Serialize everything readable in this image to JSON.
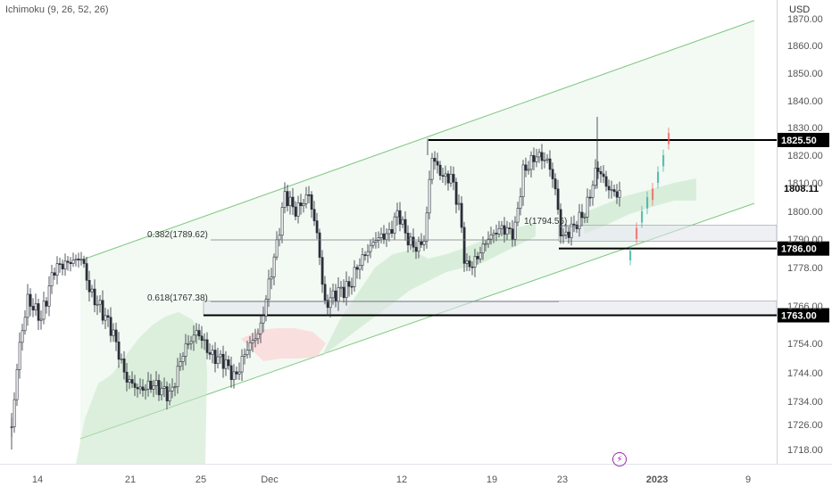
{
  "indicator": "Ichimoku (9, 26, 52, 26)",
  "currency": "USD",
  "flash_icon": "lightning-icon",
  "colors": {
    "bull": "#26a69a",
    "bear": "#ef5350",
    "candle": "#2a2e39",
    "channel": "#81c784",
    "cloud_green": "#a5d6a7",
    "cloud_red": "#ef9a9a",
    "level": "#000000",
    "flash": "#9c27b0"
  },
  "chart_data": {
    "type": "candlestick",
    "y_ticks": [
      "1870.00",
      "1860.00",
      "1850.00",
      "1840.00",
      "1830.00",
      "1820.00",
      "1810.00",
      "1800.00",
      "1790.00",
      "1778.00",
      "1766.00",
      "1754.00",
      "1744.00",
      "1734.00",
      "1726.00",
      "1718.00"
    ],
    "x_ticks": [
      "14",
      "21",
      "25",
      "Dec",
      "12",
      "19",
      "23",
      "2023",
      "9"
    ],
    "levels": [
      {
        "label": "1825.50",
        "price": 1825.5
      },
      {
        "label": "1786.00",
        "price": 1786.0
      },
      {
        "label": "1763.00",
        "price": 1763.0
      }
    ],
    "current_price": "1808.11",
    "fib_labels": [
      "0.382(1789.62)",
      "0.618(1767.38)",
      "1(1794.56)"
    ],
    "zones": [
      {
        "from": 1789.0,
        "to": 1795.0
      },
      {
        "from": 1763.0,
        "to": 1767.5
      }
    ],
    "ylim": [
      1712,
      1873
    ]
  }
}
